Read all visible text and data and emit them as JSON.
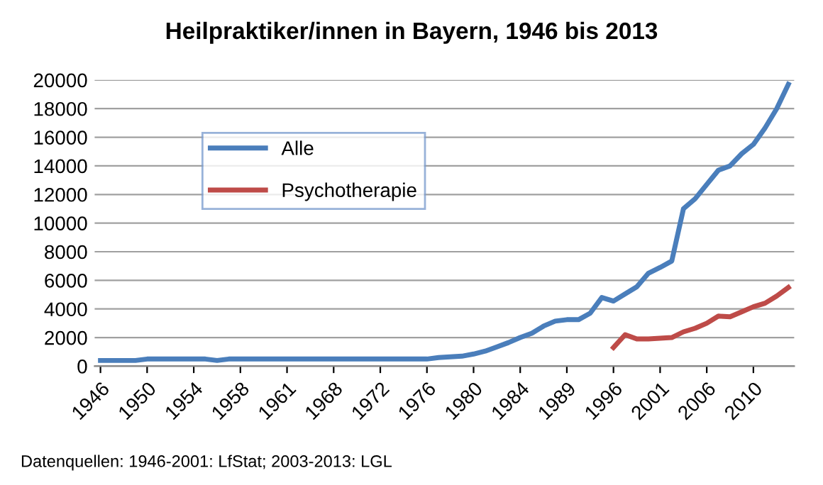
{
  "chart_data": {
    "type": "line",
    "title": "Heilpraktiker/innen in Bayern, 1946 bis 2013",
    "categories": [
      "1946",
      null,
      null,
      null,
      "1950",
      null,
      null,
      null,
      "1954",
      null,
      null,
      null,
      "1958",
      null,
      null,
      null,
      "1961",
      null,
      null,
      null,
      "1968",
      null,
      null,
      null,
      "1972",
      null,
      null,
      null,
      "1976",
      null,
      null,
      null,
      "1980",
      null,
      null,
      null,
      "1984",
      null,
      null,
      null,
      "1989",
      null,
      null,
      null,
      "1996",
      null,
      null,
      null,
      "2001",
      null,
      null,
      null,
      "2006",
      null,
      null,
      null,
      "2010",
      null,
      null,
      null
    ],
    "series": [
      {
        "name": "Alle",
        "color": "#4a7ebb",
        "values": [
          400,
          400,
          400,
          400,
          500,
          500,
          500,
          500,
          500,
          500,
          400,
          500,
          500,
          500,
          500,
          500,
          500,
          500,
          500,
          500,
          500,
          500,
          500,
          500,
          500,
          500,
          500,
          500,
          500,
          600,
          650,
          700,
          850,
          1050,
          1350,
          1650,
          2000,
          2300,
          2800,
          3150,
          3250,
          3250,
          3700,
          4800,
          4550,
          5050,
          5550,
          6500,
          6900,
          7350,
          11000,
          11700,
          12700,
          13700,
          14000,
          14850,
          15500,
          16650,
          18000,
          19700
        ]
      },
      {
        "name": "Psychotherapie",
        "color": "#be4b48",
        "values": [
          null,
          null,
          null,
          null,
          null,
          null,
          null,
          null,
          null,
          null,
          null,
          null,
          null,
          null,
          null,
          null,
          null,
          null,
          null,
          null,
          null,
          null,
          null,
          null,
          null,
          null,
          null,
          null,
          null,
          null,
          null,
          null,
          null,
          null,
          null,
          null,
          null,
          null,
          null,
          null,
          null,
          null,
          null,
          null,
          1300,
          2200,
          1900,
          1900,
          1950,
          2000,
          2400,
          2650,
          3000,
          3500,
          3450,
          3800,
          4150,
          4400,
          4900,
          5500
        ]
      }
    ],
    "ylim": [
      0,
      20000
    ],
    "yticks": [
      0,
      2000,
      4000,
      6000,
      8000,
      10000,
      12000,
      14000,
      16000,
      18000,
      20000
    ],
    "grid": "y",
    "legend": "top left",
    "marker": "none",
    "line_style": "solid",
    "annotations": [
      "Datenquellen: 1946-2001: LfStat; 2003-2013: LGL"
    ]
  }
}
